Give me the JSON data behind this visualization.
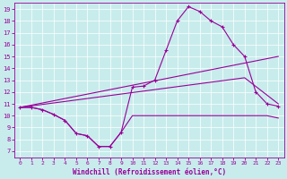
{
  "xlabel": "Windchill (Refroidissement éolien,°C)",
  "background_color": "#c8ecec",
  "line_color": "#990099",
  "xlim_min": -0.5,
  "xlim_max": 23.5,
  "ylim_min": 6.5,
  "ylim_max": 19.5,
  "yticks": [
    7,
    8,
    9,
    10,
    11,
    12,
    13,
    14,
    15,
    16,
    17,
    18,
    19
  ],
  "xticks": [
    0,
    1,
    2,
    3,
    4,
    5,
    6,
    7,
    8,
    9,
    10,
    11,
    12,
    13,
    14,
    15,
    16,
    17,
    18,
    19,
    20,
    21,
    22,
    23
  ],
  "curve1_x": [
    0,
    1,
    2,
    3,
    4,
    5,
    6,
    7,
    8,
    9,
    10,
    11,
    12,
    13,
    14,
    15,
    16,
    17,
    18,
    19,
    20,
    21,
    22,
    23
  ],
  "curve1_y": [
    10.7,
    10.7,
    10.5,
    10.1,
    9.6,
    8.5,
    8.3,
    7.4,
    7.4,
    8.6,
    12.4,
    12.5,
    13.0,
    15.5,
    18.0,
    19.2,
    18.8,
    18.0,
    17.5,
    16.0,
    15.0,
    12.0,
    11.0,
    10.8
  ],
  "curve2_x": [
    0,
    1,
    2,
    3,
    4,
    5,
    6,
    7,
    8,
    9,
    10,
    11,
    12,
    13,
    14,
    15,
    16,
    17,
    18,
    19,
    20,
    21,
    22,
    23
  ],
  "curve2_y": [
    10.7,
    10.7,
    10.5,
    10.1,
    9.6,
    8.5,
    8.3,
    7.4,
    7.4,
    8.6,
    10.0,
    10.0,
    10.0,
    10.0,
    10.0,
    10.0,
    10.0,
    10.0,
    10.0,
    10.0,
    10.0,
    10.0,
    10.0,
    9.8
  ],
  "trend1_x": [
    0,
    23
  ],
  "trend1_y": [
    10.7,
    15.0
  ],
  "trend2_x": [
    0,
    20,
    23
  ],
  "trend2_y": [
    10.7,
    13.2,
    11.0
  ],
  "figwidth": 3.2,
  "figheight": 2.0,
  "dpi": 100
}
